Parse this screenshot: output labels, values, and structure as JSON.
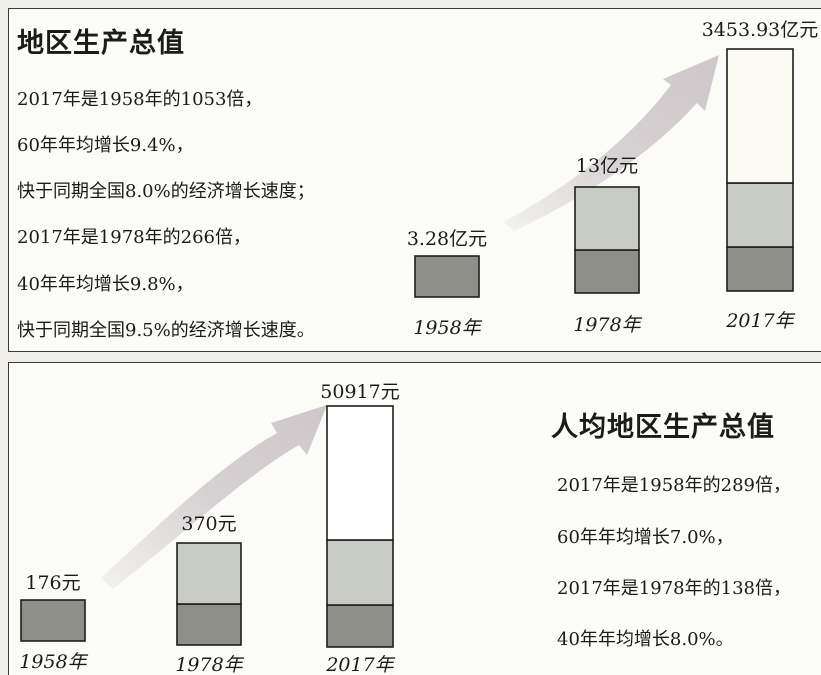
{
  "chart_data": [
    {
      "type": "bar",
      "title": "地区生产总值",
      "categories": [
        "1958年",
        "1978年",
        "2017年"
      ],
      "value_labels": [
        "3.28亿元",
        "13亿元",
        "3453.93亿元"
      ],
      "values": [
        3.28,
        13,
        3453.93
      ],
      "unit": "亿元",
      "notes": [
        "2017年是1958年的1053倍，",
        "60年年均增长9.4%，",
        "快于同期全国8.0%的经济增长速度；",
        "2017年是1978年的266倍，",
        "40年年均增长9.8%，",
        "快于同期全国9.5%的经济增长速度。"
      ],
      "colors": {
        "dark": "#8e8f89",
        "mid": "#c8cbc4",
        "light": "#fbfbf4",
        "arrow": "#c9c2c6"
      }
    },
    {
      "type": "bar",
      "title": "人均地区生产总值",
      "categories": [
        "1958年",
        "1978年",
        "2017年"
      ],
      "value_labels": [
        "176元",
        "370元",
        "50917元"
      ],
      "values": [
        176,
        370,
        50917
      ],
      "unit": "元",
      "notes": [
        "2017年是1958年的289倍，",
        "60年年均增长7.0%，",
        "2017年是1978年的138倍，",
        "40年年均增长8.0%。"
      ],
      "colors": {
        "dark": "#8e8f89",
        "mid": "#c8cbc4",
        "light": "#ffffff",
        "arrow": "#c9c2c6"
      }
    }
  ]
}
